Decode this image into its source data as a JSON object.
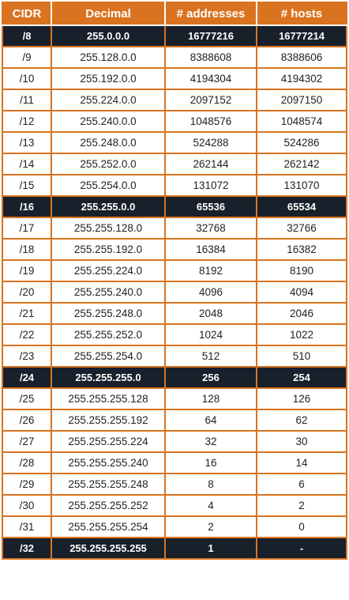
{
  "headers": [
    "CIDR",
    "Decimal",
    "# addresses",
    "# hosts"
  ],
  "rows": [
    {
      "cidr": "/8",
      "decimal": "255.0.0.0",
      "addresses": "16777216",
      "hosts": "16777214",
      "highlight": true
    },
    {
      "cidr": "/9",
      "decimal": "255.128.0.0",
      "addresses": "8388608",
      "hosts": "8388606",
      "highlight": false
    },
    {
      "cidr": "/10",
      "decimal": "255.192.0.0",
      "addresses": "4194304",
      "hosts": "4194302",
      "highlight": false
    },
    {
      "cidr": "/11",
      "decimal": "255.224.0.0",
      "addresses": "2097152",
      "hosts": "2097150",
      "highlight": false
    },
    {
      "cidr": "/12",
      "decimal": "255.240.0.0",
      "addresses": "1048576",
      "hosts": "1048574",
      "highlight": false
    },
    {
      "cidr": "/13",
      "decimal": "255.248.0.0",
      "addresses": "524288",
      "hosts": "524286",
      "highlight": false
    },
    {
      "cidr": "/14",
      "decimal": "255.252.0.0",
      "addresses": "262144",
      "hosts": "262142",
      "highlight": false
    },
    {
      "cidr": "/15",
      "decimal": "255.254.0.0",
      "addresses": "131072",
      "hosts": "131070",
      "highlight": false
    },
    {
      "cidr": "/16",
      "decimal": "255.255.0.0",
      "addresses": "65536",
      "hosts": "65534",
      "highlight": true
    },
    {
      "cidr": "/17",
      "decimal": "255.255.128.0",
      "addresses": "32768",
      "hosts": "32766",
      "highlight": false
    },
    {
      "cidr": "/18",
      "decimal": "255.255.192.0",
      "addresses": "16384",
      "hosts": "16382",
      "highlight": false
    },
    {
      "cidr": "/19",
      "decimal": "255.255.224.0",
      "addresses": "8192",
      "hosts": "8190",
      "highlight": false
    },
    {
      "cidr": "/20",
      "decimal": "255.255.240.0",
      "addresses": "4096",
      "hosts": "4094",
      "highlight": false
    },
    {
      "cidr": "/21",
      "decimal": "255.255.248.0",
      "addresses": "2048",
      "hosts": "2046",
      "highlight": false
    },
    {
      "cidr": "/22",
      "decimal": "255.255.252.0",
      "addresses": "1024",
      "hosts": "1022",
      "highlight": false
    },
    {
      "cidr": "/23",
      "decimal": "255.255.254.0",
      "addresses": "512",
      "hosts": "510",
      "highlight": false
    },
    {
      "cidr": "/24",
      "decimal": "255.255.255.0",
      "addresses": "256",
      "hosts": "254",
      "highlight": true
    },
    {
      "cidr": "/25",
      "decimal": "255.255.255.128",
      "addresses": "128",
      "hosts": "126",
      "highlight": false
    },
    {
      "cidr": "/26",
      "decimal": "255.255.255.192",
      "addresses": "64",
      "hosts": "62",
      "highlight": false
    },
    {
      "cidr": "/27",
      "decimal": "255.255.255.224",
      "addresses": "32",
      "hosts": "30",
      "highlight": false
    },
    {
      "cidr": "/28",
      "decimal": "255.255.255.240",
      "addresses": "16",
      "hosts": "14",
      "highlight": false
    },
    {
      "cidr": "/29",
      "decimal": "255.255.255.248",
      "addresses": "8",
      "hosts": "6",
      "highlight": false
    },
    {
      "cidr": "/30",
      "decimal": "255.255.255.252",
      "addresses": "4",
      "hosts": "2",
      "highlight": false
    },
    {
      "cidr": "/31",
      "decimal": "255.255.255.254",
      "addresses": "2",
      "hosts": "0",
      "highlight": false
    },
    {
      "cidr": "/32",
      "decimal": "255.255.255.255",
      "addresses": "1",
      "hosts": "-",
      "highlight": true
    }
  ],
  "colors": {
    "accent": "#d9731f",
    "highlight_row": "#18202b",
    "text": "#222222"
  }
}
